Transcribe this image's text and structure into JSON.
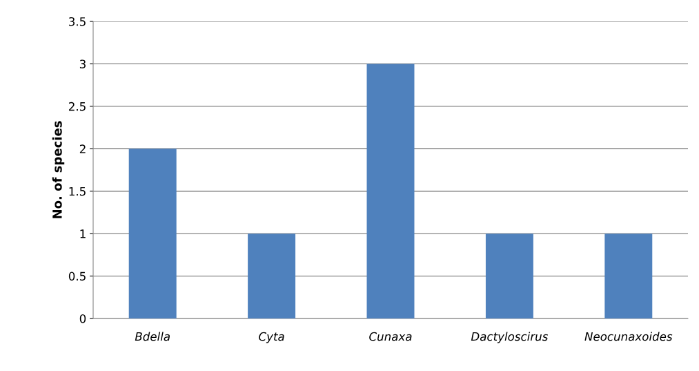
{
  "chart_data": {
    "type": "bar",
    "ylabel": "No. of species",
    "categories": [
      "Bdella",
      "Cyta",
      "Cunaxa",
      "Dactyloscirus",
      "Neocunaxoides"
    ],
    "values": [
      2,
      1,
      3,
      1,
      1
    ],
    "color": "#4f81bd",
    "ylim": [
      0,
      3.5
    ],
    "yticks": [
      0,
      0.5,
      1,
      1.5,
      2,
      2.5,
      3,
      3.5
    ],
    "grid": "y",
    "legend": false
  }
}
